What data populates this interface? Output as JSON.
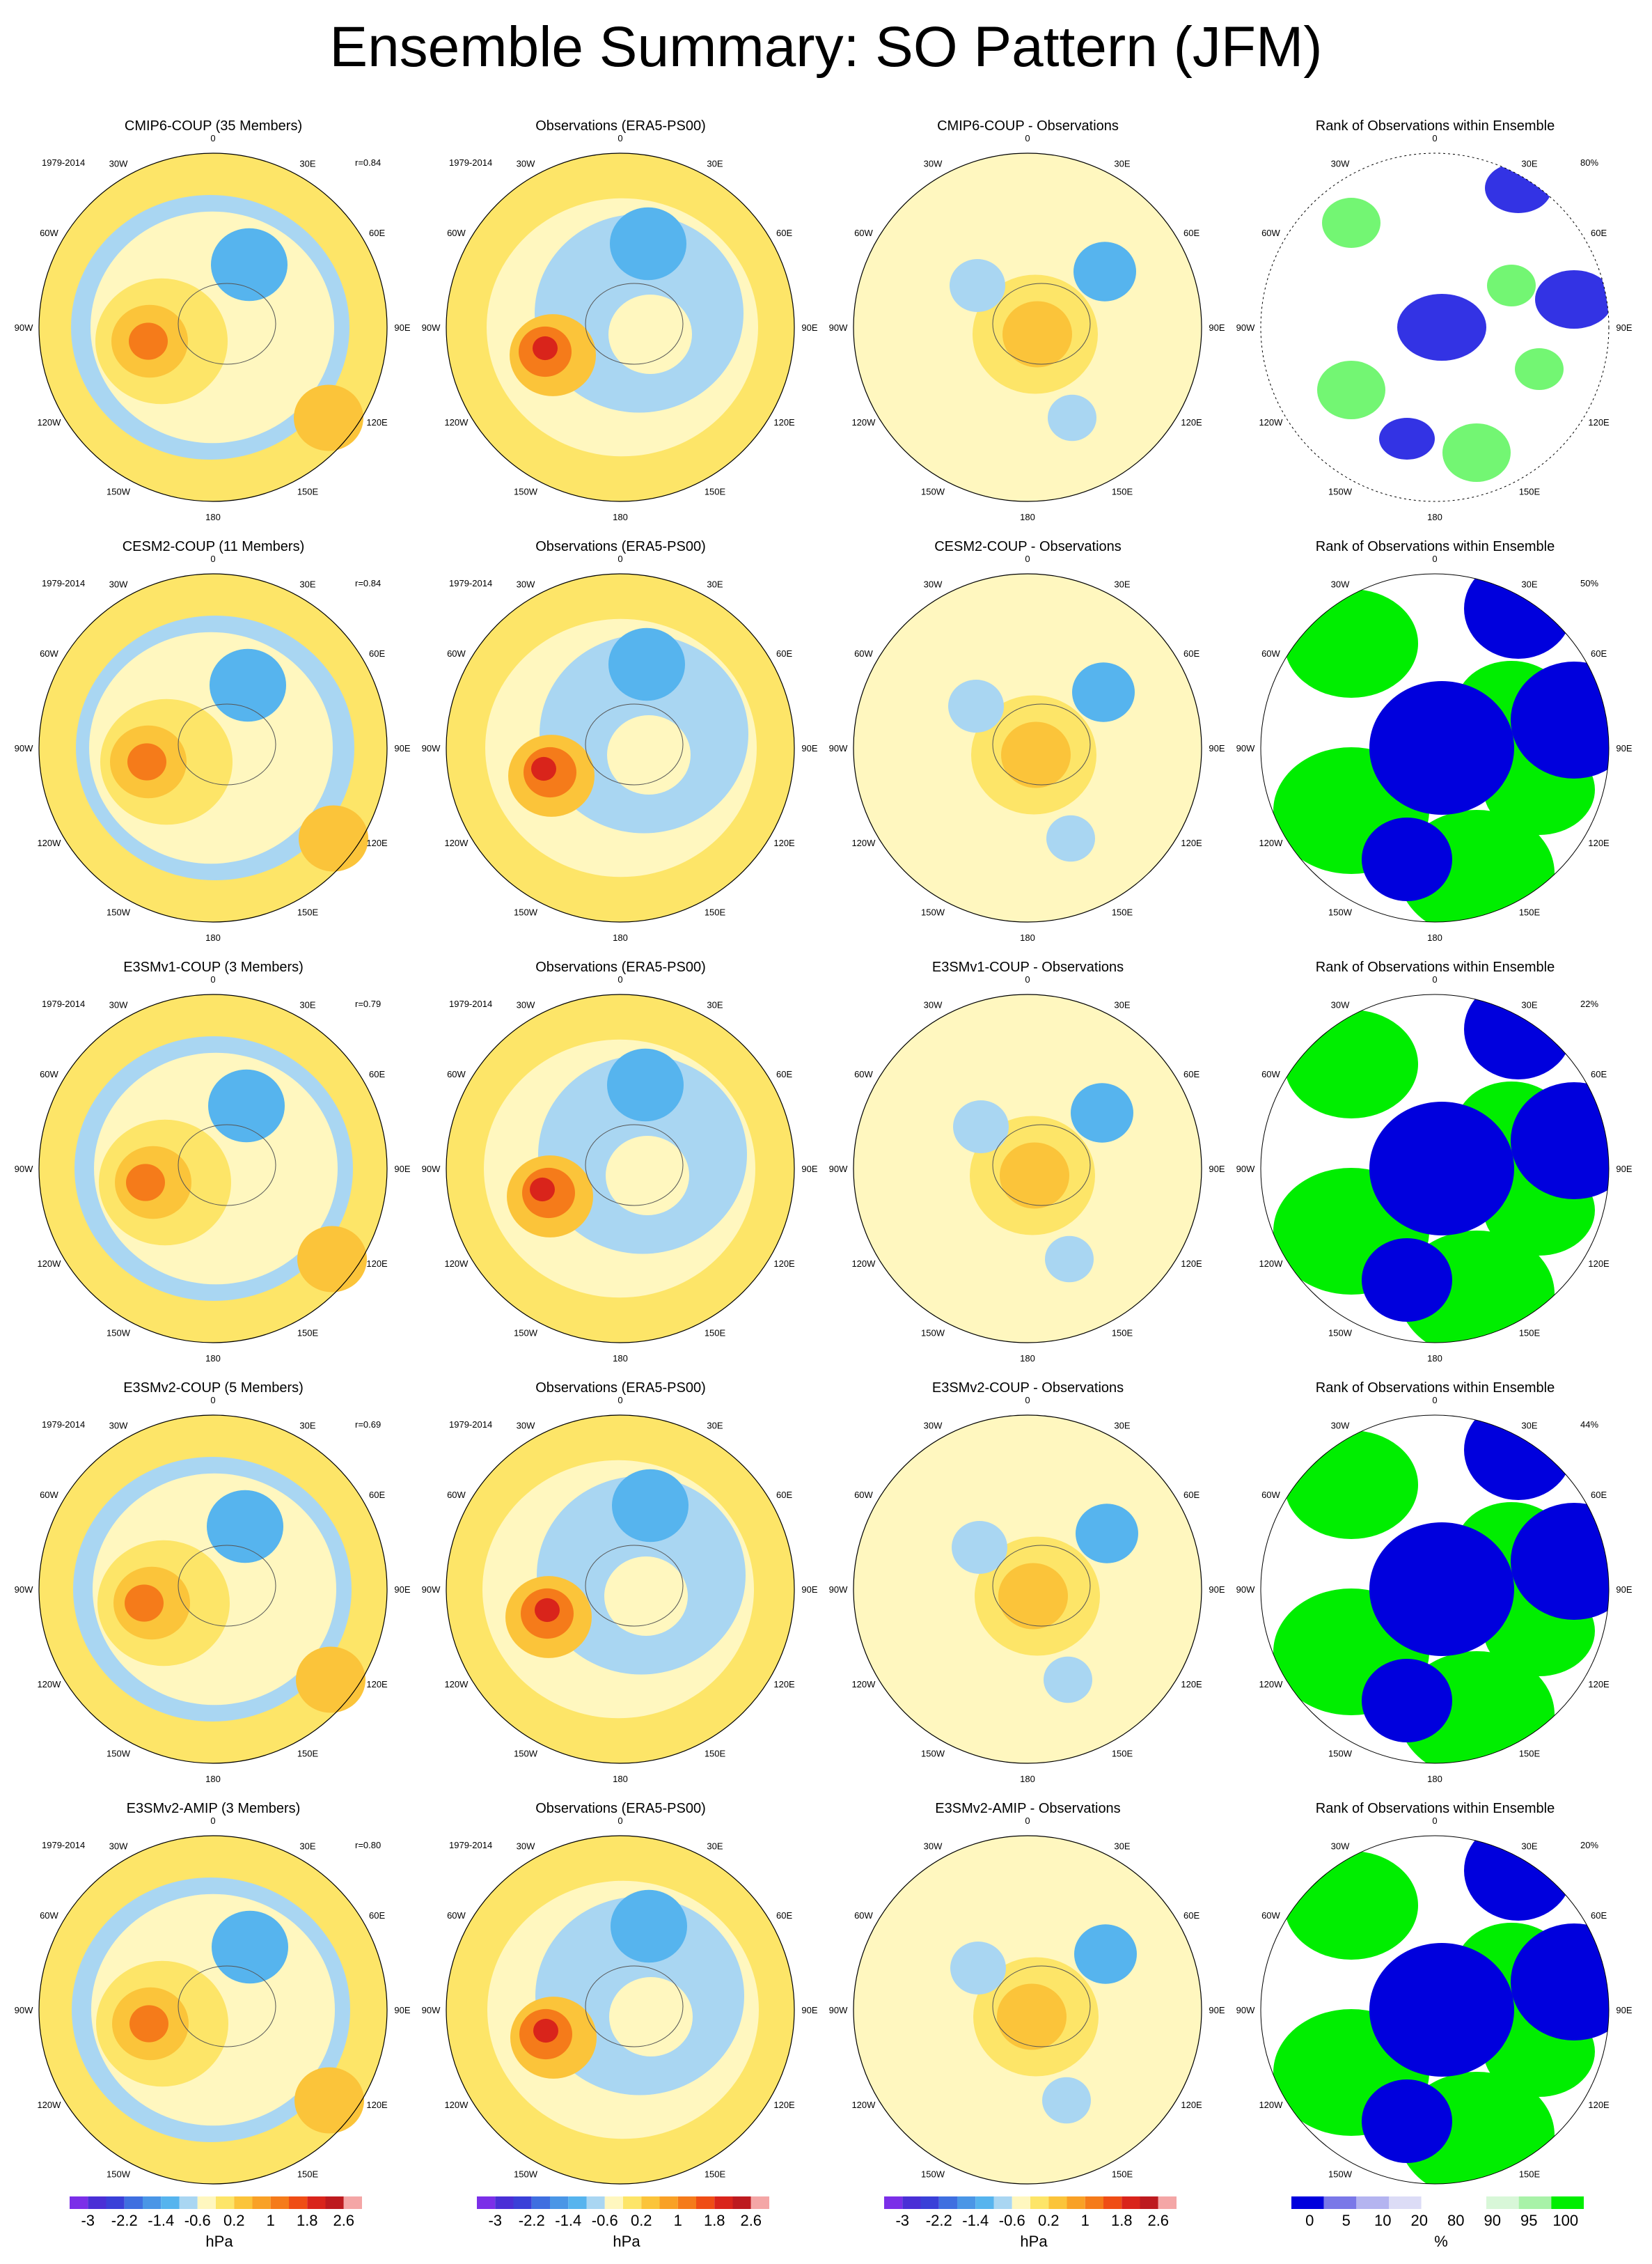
{
  "title": "Ensemble Summary: SO Pattern (JFM)",
  "period_label": "1979-2014",
  "longitude_labels": [
    "0",
    "30E",
    "60E",
    "90E",
    "120E",
    "150E",
    "180",
    "150W",
    "120W",
    "90W",
    "60W",
    "30W"
  ],
  "rows": [
    {
      "model_title": "CMIP6-COUP (35 Members)",
      "r": "r=0.84",
      "obs_title": "Observations (ERA5-PS00)",
      "diff_title": "CMIP6-COUP - Observations",
      "rank_title": "Rank of Observations within Ensemble",
      "rank_pct": "80%"
    },
    {
      "model_title": "CESM2-COUP (11 Members)",
      "r": "r=0.84",
      "obs_title": "Observations (ERA5-PS00)",
      "diff_title": "CESM2-COUP - Observations",
      "rank_title": "Rank of Observations within Ensemble",
      "rank_pct": "50%"
    },
    {
      "model_title": "E3SMv1-COUP (3 Members)",
      "r": "r=0.79",
      "obs_title": "Observations (ERA5-PS00)",
      "diff_title": "E3SMv1-COUP - Observations",
      "rank_title": "Rank of Observations within Ensemble",
      "rank_pct": "22%"
    },
    {
      "model_title": "E3SMv2-COUP (5 Members)",
      "r": "r=0.69",
      "obs_title": "Observations (ERA5-PS00)",
      "diff_title": "E3SMv2-COUP - Observations",
      "rank_title": "Rank of Observations within Ensemble",
      "rank_pct": "44%"
    },
    {
      "model_title": "E3SMv2-AMIP (3 Members)",
      "r": "r=0.80",
      "obs_title": "Observations (ERA5-PS00)",
      "diff_title": "E3SMv2-AMIP - Observations",
      "rank_title": "Rank of Observations within Ensemble",
      "rank_pct": "20%"
    }
  ],
  "colors": {
    "hpa_levels": [
      "#7b2fe8",
      "#4a2fd6",
      "#3a40d8",
      "#3f6fe0",
      "#4a96e6",
      "#56b4ee",
      "#a9d6f2",
      "#fff7bf",
      "#fde568",
      "#fbc43a",
      "#f9a126",
      "#f57b1a",
      "#ef4d15",
      "#d9241b",
      "#bd1a1f",
      "#f4a6a6"
    ],
    "rank_levels": [
      "#0000dd",
      "#7a78e8",
      "#b4b4f0",
      "#dcdcf6",
      "#ffffff",
      "#ffffff",
      "#d8f7d8",
      "#a8f2a8",
      "#00ee00"
    ]
  },
  "chart_data": [
    {
      "type": "heatmap",
      "description_kind": "polar-stereographic field map",
      "colorbar": {
        "unit": "hPa",
        "tick_labels": [
          "-3",
          "-2.2",
          "-1.4",
          "-0.6",
          "0.2",
          "1",
          "1.8",
          "2.6"
        ],
        "levels": [
          -3.0,
          -2.6,
          -2.2,
          -1.8,
          -1.4,
          -1.0,
          -0.6,
          -0.2,
          0.2,
          0.6,
          1.0,
          1.4,
          1.8,
          2.2,
          2.6,
          3.0
        ]
      }
    },
    {
      "type": "heatmap",
      "description_kind": "rank map",
      "colorbar": {
        "unit": "%",
        "tick_labels": [
          "0",
          "5",
          "10",
          "20",
          "80",
          "90",
          "95",
          "100"
        ],
        "levels": [
          0,
          5,
          10,
          20,
          80,
          90,
          95,
          100
        ]
      }
    }
  ]
}
